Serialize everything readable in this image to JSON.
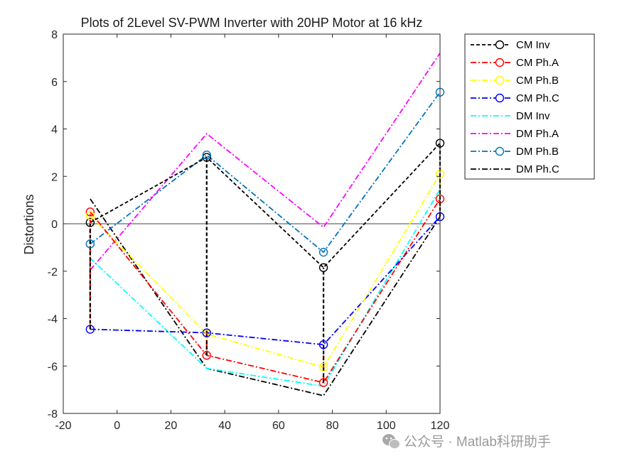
{
  "chart_data": {
    "type": "line",
    "title": "Plots of 2Level SV-PWM Inverter with 20HP Motor at 16 kHz",
    "xlabel": "",
    "ylabel": "Distortions",
    "xlim": [
      -20,
      120
    ],
    "ylim": [
      -8,
      8
    ],
    "xticks": [
      -20,
      0,
      20,
      40,
      60,
      80,
      100,
      120
    ],
    "yticks": [
      -8,
      -6,
      -4,
      -2,
      0,
      2,
      4,
      6,
      8
    ],
    "x": [
      -10,
      33.3,
      76.7,
      120
    ],
    "zero_line": true,
    "legend_position": "outside-top-right",
    "series": [
      {
        "name": "CM Inv",
        "color": "#000000",
        "dash": "5,3",
        "marker": true,
        "values": [
          0.05,
          2.8,
          -1.85,
          3.4
        ]
      },
      {
        "name": "CM Ph.A",
        "color": "#ff0000",
        "dash": "8,3,2,3",
        "marker": true,
        "values": [
          0.5,
          -5.55,
          -6.7,
          1.05
        ]
      },
      {
        "name": "CM Ph.B",
        "color": "#ffff00",
        "dash": "8,3,2,3",
        "marker": true,
        "values": [
          0.35,
          -4.65,
          -6.05,
          2.1
        ]
      },
      {
        "name": "CM Ph.C",
        "color": "#0000ff",
        "dash": "8,3,2,3",
        "marker": true,
        "values": [
          -4.45,
          -4.6,
          -5.1,
          0.3
        ]
      },
      {
        "name": "DM Inv",
        "color": "#00ffff",
        "dash": "8,3,2,3",
        "marker": false,
        "values": [
          -1.45,
          -6.1,
          -6.85,
          1.45
        ]
      },
      {
        "name": "DM Ph.A",
        "color": "#ff00ff",
        "dash": "8,3,2,3",
        "marker": false,
        "values": [
          -1.95,
          3.8,
          -0.15,
          7.2
        ]
      },
      {
        "name": "DM Ph.B",
        "color": "#0072bd",
        "dash": "8,3,2,3",
        "marker": true,
        "values": [
          -0.85,
          2.9,
          -1.2,
          5.55
        ]
      },
      {
        "name": "DM Ph.C",
        "color": "#000000",
        "dash": "8,3,2,3",
        "marker": false,
        "values": [
          1.05,
          -6.1,
          -7.25,
          0.3
        ]
      }
    ],
    "stems": [
      {
        "series": "CM Inv",
        "from_series": "CM Ph.C"
      },
      {
        "series": "CM Ph.A",
        "from_series": "CM Ph.C"
      },
      {
        "series": "CM Ph.B",
        "from_series": "CM Ph.C"
      },
      {
        "series": "CM Ph.C",
        "from_series": "CM Ph.C"
      }
    ]
  },
  "watermark": {
    "icon": "wechat-icon",
    "text": "公众号 · Matlab科研助手"
  }
}
